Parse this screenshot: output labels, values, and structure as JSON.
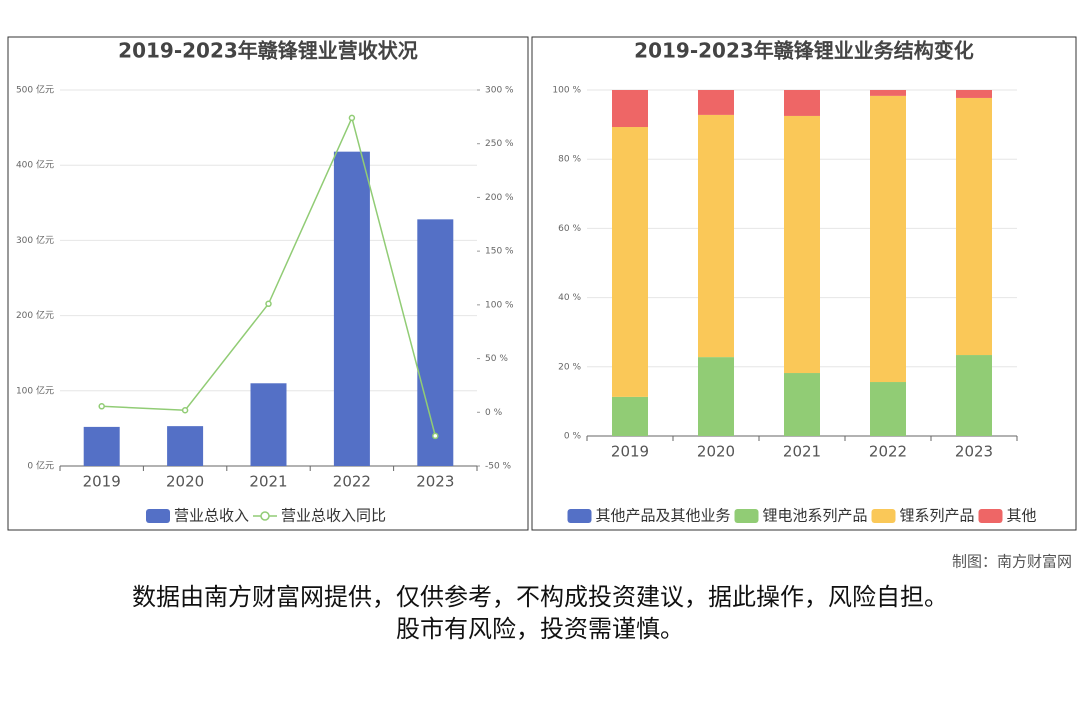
{
  "chart_data": [
    {
      "type": "bar",
      "title": "2019-2023年赣锋锂业营收状况",
      "categories": [
        "2019",
        "2020",
        "2021",
        "2022",
        "2023"
      ],
      "series": [
        {
          "name": "营业总收入",
          "color": "#5470c6",
          "type": "bar",
          "values": [
            52,
            53,
            110,
            418,
            328
          ]
        },
        {
          "name": "营业总收入同比",
          "color": "#91cc75",
          "type": "line",
          "axis": "y2",
          "values": [
            5.6,
            1.9,
            101,
            274,
            -22
          ]
        }
      ],
      "ylim": [
        0,
        500
      ],
      "yticks": [
        {
          "value": 0,
          "label": "0 亿元"
        },
        {
          "value": 100,
          "label": "100 亿元"
        },
        {
          "value": 200,
          "label": "200 亿元"
        },
        {
          "value": 300,
          "label": "300 亿元"
        },
        {
          "value": 400,
          "label": "400 亿元"
        },
        {
          "value": 500,
          "label": "500 亿元"
        }
      ],
      "y2lim": [
        -50,
        300
      ],
      "y2ticks": [
        {
          "value": -50,
          "label": "-50 %"
        },
        {
          "value": 0,
          "label": "0 %"
        },
        {
          "value": 50,
          "label": "50 %"
        },
        {
          "value": 100,
          "label": "100 %"
        },
        {
          "value": 150,
          "label": "150 %"
        },
        {
          "value": 200,
          "label": "200 %"
        },
        {
          "value": 250,
          "label": "250 %"
        },
        {
          "value": 300,
          "label": "300 %"
        }
      ],
      "grid": true
    },
    {
      "type": "stacked_bar",
      "title": "2019-2023年赣锋锂业业务结构变化",
      "categories": [
        "2019",
        "2020",
        "2021",
        "2022",
        "2023"
      ],
      "series": [
        {
          "name": "其他产品及其他业务",
          "color": "#5470c6",
          "values": [
            0,
            0,
            0,
            0,
            0
          ]
        },
        {
          "name": "锂电池系列产品",
          "color": "#91cc75",
          "values": [
            11.3,
            22.8,
            18.2,
            15.6,
            23.4
          ]
        },
        {
          "name": "锂系列产品",
          "color": "#fac858",
          "values": [
            78,
            70,
            74.3,
            82.7,
            74.3
          ]
        },
        {
          "name": "其他",
          "color": "#ee6666",
          "values": [
            10.7,
            7.2,
            7.5,
            1.7,
            2.3
          ]
        }
      ],
      "ylim": [
        0,
        100
      ],
      "yticks": [
        {
          "value": 0,
          "label": "0 %"
        },
        {
          "value": 20,
          "label": "20 %"
        },
        {
          "value": 40,
          "label": "40 %"
        },
        {
          "value": 60,
          "label": "60 %"
        },
        {
          "value": 80,
          "label": "80 %"
        },
        {
          "value": 100,
          "label": "100 %"
        }
      ],
      "grid": true
    }
  ],
  "footer": {
    "credit": "制图：南方财富网",
    "disclaimer": [
      "数据由南方财富网提供，仅供参考，不构成投资建议，据此操作，风险自担。",
      "股市有风险，投资需谨慎。"
    ]
  }
}
